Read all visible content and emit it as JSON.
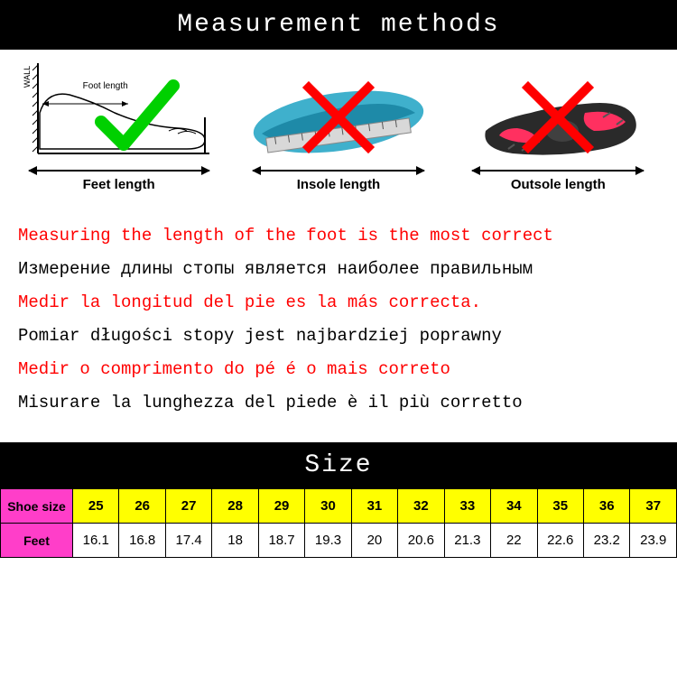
{
  "header": {
    "title": "Measurement methods"
  },
  "methods": {
    "feet": {
      "label": "Feet length",
      "wall": "WALL",
      "inner_label": "Foot length",
      "arrow_width": 200,
      "correct": true
    },
    "insole": {
      "label": "Insole length",
      "arrow_width": 190,
      "correct": false
    },
    "outsole": {
      "label": "Outsole length",
      "arrow_width": 190,
      "correct": false
    }
  },
  "colors": {
    "check": "#00d000",
    "cross": "#ff0000",
    "header_bg": "#000000",
    "header_fg": "#ffffff",
    "size_label_bg": "#ff3ec9",
    "size_row_bg": "#ffff00",
    "text_red": "#ff0000",
    "text_black": "#000000",
    "insole_fill": "#2aa7c7",
    "ruler_fill": "#d0d0d0",
    "outsole_fill": "#2a2a2a",
    "outsole_accent": "#ff3060"
  },
  "translations": [
    {
      "text": "Measuring the length of the foot is the most correct",
      "color": "#ff0000"
    },
    {
      "text": "Измерение длины стопы является наиболее правильным",
      "color": "#000000"
    },
    {
      "text": "Medir la longitud del pie es la más correcta.",
      "color": "#ff0000"
    },
    {
      "text": "Pomiar długości stopy jest najbardziej poprawny",
      "color": "#000000"
    },
    {
      "text": "Medir o comprimento do pé é o mais correto",
      "color": "#ff0000"
    },
    {
      "text": "Misurare la lunghezza del piede è il più corretto",
      "color": "#000000"
    }
  ],
  "size": {
    "title": "Size",
    "row_labels": {
      "sizes": "Shoe size",
      "feet": "Feet"
    },
    "sizes": [
      "25",
      "26",
      "27",
      "28",
      "29",
      "30",
      "31",
      "32",
      "33",
      "34",
      "35",
      "36",
      "37"
    ],
    "feet": [
      "16.1",
      "16.8",
      "17.4",
      "18",
      "18.7",
      "19.3",
      "20",
      "20.6",
      "21.3",
      "22",
      "22.6",
      "23.2",
      "23.9"
    ]
  }
}
